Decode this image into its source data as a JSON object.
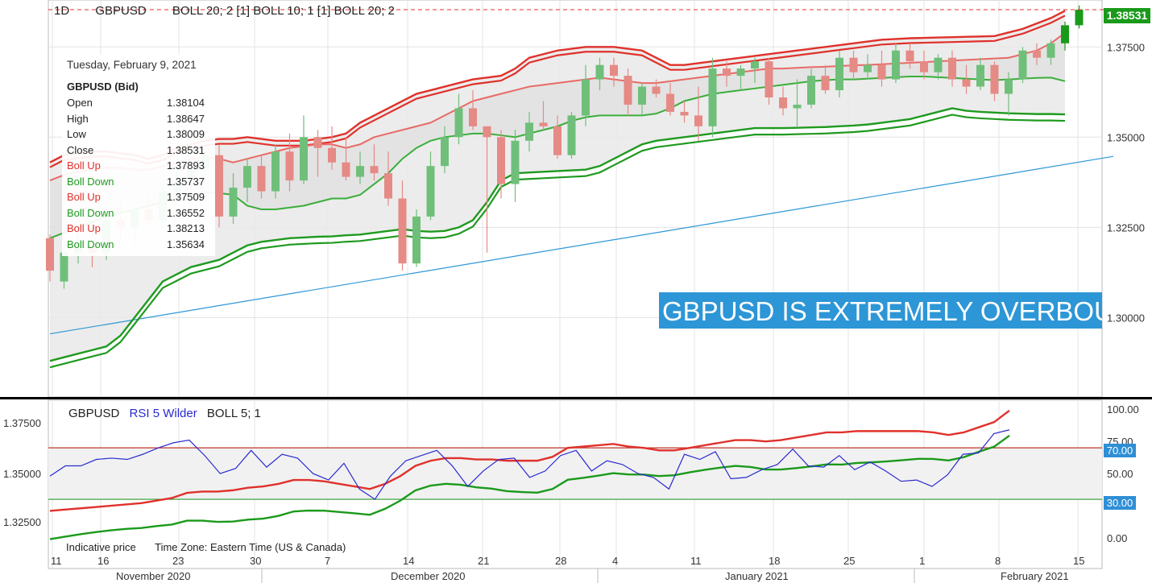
{
  "header": {
    "interval": "1D",
    "symbol": "GBPUSD",
    "indicators": "BOLL 20; 2 [1] BOLL 10; 1 [1] BOLL 20; 2"
  },
  "tooltip": {
    "date": "Tuesday, February 9, 2021",
    "symbol": "GBPUSD (Bid)",
    "rows": [
      {
        "label": "Open",
        "value": "1.38104",
        "color": "#222222"
      },
      {
        "label": "High",
        "value": "1.38647",
        "color": "#222222"
      },
      {
        "label": "Low",
        "value": "1.38009",
        "color": "#222222"
      },
      {
        "label": "Close",
        "value": "1.38531",
        "color": "#222222"
      },
      {
        "label": "Boll Up",
        "value": "1.37893",
        "color": "#e0312b"
      },
      {
        "label": "Boll Down",
        "value": "1.35737",
        "color": "#1f9a1f"
      },
      {
        "label": "Boll Up",
        "value": "1.37509",
        "color": "#e0312b"
      },
      {
        "label": "Boll Down",
        "value": "1.36552",
        "color": "#1f9a1f"
      },
      {
        "label": "Boll Up",
        "value": "1.38213",
        "color": "#e0312b"
      },
      {
        "label": "Boll Down",
        "value": "1.35634",
        "color": "#1f9a1f"
      }
    ]
  },
  "last_price": "1.38531",
  "banner": "GBPUSD IS EXTREMELY OVERBOUGHT",
  "rsi_panel": {
    "symbol": "GBPUSD",
    "indicator": "RSI 5 Wilder",
    "boll": "BOLL 5; 1",
    "badge_upper": "70.00",
    "badge_lower": "30.00"
  },
  "footer": {
    "note": "Indicative price",
    "timezone": "Time Zone: Eastern Time (US & Canada)"
  },
  "colors": {
    "up_candle": "#2e9e3e",
    "down_candle": "#e0312b",
    "boll_up": "#e0312b",
    "boll_down": "#1f9a1f",
    "rsi_line": "#2a2ad0",
    "trendline": "#2d96d6"
  },
  "chart_data": [
    {
      "type": "candlestick",
      "title": "GBPUSD",
      "y_ticks": [
        "1.37500",
        "1.35000",
        "1.32500",
        "1.30000"
      ],
      "ylim": [
        1.278,
        1.388
      ],
      "x_ticks": [
        "11",
        "16",
        "23",
        "30",
        "7",
        "14",
        "21",
        "28",
        "4",
        "11",
        "18",
        "25",
        "1",
        "8",
        "15"
      ],
      "month_labels": [
        "November 2020",
        "December 2020",
        "January 2021",
        "February 2021"
      ],
      "candles": [
        {
          "o": 1.322,
          "h": 1.323,
          "l": 1.31,
          "c": 1.313
        },
        {
          "o": 1.31,
          "h": 1.321,
          "l": 1.308,
          "c": 1.318
        },
        {
          "o": 1.318,
          "h": 1.326,
          "l": 1.315,
          "c": 1.32
        },
        {
          "o": 1.32,
          "h": 1.326,
          "l": 1.314,
          "c": 1.318
        },
        {
          "o": 1.318,
          "h": 1.33,
          "l": 1.316,
          "c": 1.327
        },
        {
          "o": 1.327,
          "h": 1.332,
          "l": 1.322,
          "c": 1.325
        },
        {
          "o": 1.325,
          "h": 1.331,
          "l": 1.32,
          "c": 1.33
        },
        {
          "o": 1.33,
          "h": 1.334,
          "l": 1.325,
          "c": 1.327
        },
        {
          "o": 1.327,
          "h": 1.337,
          "l": 1.325,
          "c": 1.335
        },
        {
          "o": 1.335,
          "h": 1.341,
          "l": 1.333,
          "c": 1.338
        },
        {
          "o": 1.338,
          "h": 1.344,
          "l": 1.335,
          "c": 1.341
        },
        {
          "o": 1.341,
          "h": 1.347,
          "l": 1.338,
          "c": 1.345
        },
        {
          "o": 1.345,
          "h": 1.348,
          "l": 1.325,
          "c": 1.328
        },
        {
          "o": 1.328,
          "h": 1.34,
          "l": 1.326,
          "c": 1.336
        },
        {
          "o": 1.336,
          "h": 1.344,
          "l": 1.332,
          "c": 1.342
        },
        {
          "o": 1.342,
          "h": 1.345,
          "l": 1.333,
          "c": 1.335
        },
        {
          "o": 1.335,
          "h": 1.348,
          "l": 1.333,
          "c": 1.346
        },
        {
          "o": 1.346,
          "h": 1.351,
          "l": 1.335,
          "c": 1.338
        },
        {
          "o": 1.338,
          "h": 1.356,
          "l": 1.337,
          "c": 1.35
        },
        {
          "o": 1.35,
          "h": 1.352,
          "l": 1.339,
          "c": 1.347
        },
        {
          "o": 1.347,
          "h": 1.353,
          "l": 1.341,
          "c": 1.343
        },
        {
          "o": 1.343,
          "h": 1.35,
          "l": 1.338,
          "c": 1.339
        },
        {
          "o": 1.339,
          "h": 1.346,
          "l": 1.337,
          "c": 1.342
        },
        {
          "o": 1.342,
          "h": 1.348,
          "l": 1.338,
          "c": 1.34
        },
        {
          "o": 1.34,
          "h": 1.346,
          "l": 1.331,
          "c": 1.333
        },
        {
          "o": 1.333,
          "h": 1.338,
          "l": 1.313,
          "c": 1.315
        },
        {
          "o": 1.315,
          "h": 1.33,
          "l": 1.314,
          "c": 1.328
        },
        {
          "o": 1.328,
          "h": 1.346,
          "l": 1.327,
          "c": 1.342
        },
        {
          "o": 1.342,
          "h": 1.353,
          "l": 1.34,
          "c": 1.35
        },
        {
          "o": 1.35,
          "h": 1.362,
          "l": 1.348,
          "c": 1.358
        },
        {
          "o": 1.358,
          "h": 1.363,
          "l": 1.352,
          "c": 1.353
        },
        {
          "o": 1.353,
          "h": 1.353,
          "l": 1.318,
          "c": 1.35
        },
        {
          "o": 1.35,
          "h": 1.352,
          "l": 1.333,
          "c": 1.337
        },
        {
          "o": 1.337,
          "h": 1.352,
          "l": 1.332,
          "c": 1.349
        },
        {
          "o": 1.349,
          "h": 1.357,
          "l": 1.346,
          "c": 1.354
        },
        {
          "o": 1.354,
          "h": 1.36,
          "l": 1.352,
          "c": 1.353
        },
        {
          "o": 1.353,
          "h": 1.356,
          "l": 1.344,
          "c": 1.345
        },
        {
          "o": 1.345,
          "h": 1.357,
          "l": 1.344,
          "c": 1.356
        },
        {
          "o": 1.356,
          "h": 1.37,
          "l": 1.353,
          "c": 1.366
        },
        {
          "o": 1.366,
          "h": 1.372,
          "l": 1.363,
          "c": 1.37
        },
        {
          "o": 1.37,
          "h": 1.372,
          "l": 1.364,
          "c": 1.367
        },
        {
          "o": 1.367,
          "h": 1.369,
          "l": 1.356,
          "c": 1.359
        },
        {
          "o": 1.359,
          "h": 1.365,
          "l": 1.356,
          "c": 1.364
        },
        {
          "o": 1.364,
          "h": 1.366,
          "l": 1.361,
          "c": 1.362
        },
        {
          "o": 1.362,
          "h": 1.365,
          "l": 1.356,
          "c": 1.357
        },
        {
          "o": 1.357,
          "h": 1.36,
          "l": 1.354,
          "c": 1.356
        },
        {
          "o": 1.356,
          "h": 1.364,
          "l": 1.349,
          "c": 1.353
        },
        {
          "o": 1.353,
          "h": 1.372,
          "l": 1.35,
          "c": 1.369
        },
        {
          "o": 1.369,
          "h": 1.371,
          "l": 1.364,
          "c": 1.367
        },
        {
          "o": 1.367,
          "h": 1.37,
          "l": 1.363,
          "c": 1.369
        },
        {
          "o": 1.369,
          "h": 1.372,
          "l": 1.365,
          "c": 1.371
        },
        {
          "o": 1.371,
          "h": 1.372,
          "l": 1.359,
          "c": 1.361
        },
        {
          "o": 1.361,
          "h": 1.364,
          "l": 1.356,
          "c": 1.358
        },
        {
          "o": 1.358,
          "h": 1.366,
          "l": 1.353,
          "c": 1.359
        },
        {
          "o": 1.359,
          "h": 1.369,
          "l": 1.358,
          "c": 1.367
        },
        {
          "o": 1.367,
          "h": 1.37,
          "l": 1.362,
          "c": 1.363
        },
        {
          "o": 1.363,
          "h": 1.374,
          "l": 1.361,
          "c": 1.372
        },
        {
          "o": 1.372,
          "h": 1.374,
          "l": 1.366,
          "c": 1.368
        },
        {
          "o": 1.368,
          "h": 1.373,
          "l": 1.366,
          "c": 1.37
        },
        {
          "o": 1.37,
          "h": 1.374,
          "l": 1.364,
          "c": 1.366
        },
        {
          "o": 1.366,
          "h": 1.376,
          "l": 1.365,
          "c": 1.374
        },
        {
          "o": 1.374,
          "h": 1.376,
          "l": 1.369,
          "c": 1.371
        },
        {
          "o": 1.371,
          "h": 1.374,
          "l": 1.366,
          "c": 1.368
        },
        {
          "o": 1.368,
          "h": 1.373,
          "l": 1.366,
          "c": 1.372
        },
        {
          "o": 1.372,
          "h": 1.374,
          "l": 1.364,
          "c": 1.366
        },
        {
          "o": 1.366,
          "h": 1.37,
          "l": 1.362,
          "c": 1.364
        },
        {
          "o": 1.364,
          "h": 1.372,
          "l": 1.363,
          "c": 1.37
        },
        {
          "o": 1.37,
          "h": 1.371,
          "l": 1.36,
          "c": 1.362
        },
        {
          "o": 1.362,
          "h": 1.368,
          "l": 1.356,
          "c": 1.366
        },
        {
          "o": 1.366,
          "h": 1.375,
          "l": 1.365,
          "c": 1.374
        },
        {
          "o": 1.374,
          "h": 1.376,
          "l": 1.37,
          "c": 1.372
        },
        {
          "o": 1.372,
          "h": 1.377,
          "l": 1.37,
          "c": 1.376
        },
        {
          "o": 1.376,
          "h": 1.382,
          "l": 1.374,
          "c": 1.381
        },
        {
          "o": 1.381,
          "h": 1.3865,
          "l": 1.3801,
          "c": 1.3853
        }
      ],
      "boll_upper_outer": [
        1.343,
        1.345,
        1.3455,
        1.346,
        1.346,
        1.3455,
        1.345,
        1.344,
        1.345,
        1.347,
        1.348,
        1.349,
        1.3495,
        1.3495,
        1.35,
        1.3495,
        1.349,
        1.349,
        1.349,
        1.3495,
        1.35,
        1.351,
        1.354,
        1.356,
        1.358,
        1.36,
        1.362,
        1.363,
        1.364,
        1.365,
        1.366,
        1.3665,
        1.367,
        1.369,
        1.372,
        1.373,
        1.374,
        1.3745,
        1.375,
        1.375,
        1.375,
        1.3745,
        1.374,
        1.372,
        1.37,
        1.37,
        1.3705,
        1.371,
        1.3715,
        1.372,
        1.3725,
        1.373,
        1.3735,
        1.374,
        1.3745,
        1.375,
        1.3755,
        1.376,
        1.3765,
        1.377,
        1.3772,
        1.3774,
        1.3775,
        1.3776,
        1.3777,
        1.3778,
        1.3779,
        1.378,
        1.379,
        1.38,
        1.3815,
        1.383,
        1.385
      ],
      "boll_upper_mid": [
        1.338,
        1.3395,
        1.3405,
        1.341,
        1.3415,
        1.3415,
        1.341,
        1.341,
        1.342,
        1.343,
        1.344,
        1.3445,
        1.344,
        1.343,
        1.344,
        1.345,
        1.346,
        1.347,
        1.3475,
        1.348,
        1.348,
        1.347,
        1.348,
        1.35,
        1.351,
        1.352,
        1.353,
        1.354,
        1.356,
        1.358,
        1.36,
        1.361,
        1.362,
        1.363,
        1.364,
        1.3645,
        1.365,
        1.3655,
        1.366,
        1.3665,
        1.366,
        1.3655,
        1.365,
        1.365,
        1.3655,
        1.366,
        1.3665,
        1.367,
        1.3675,
        1.368,
        1.3685,
        1.369,
        1.369,
        1.3692,
        1.3694,
        1.3695,
        1.3697,
        1.3699,
        1.37,
        1.3702,
        1.3704,
        1.3706,
        1.3708,
        1.371,
        1.3712,
        1.3714,
        1.3716,
        1.3718,
        1.372,
        1.373,
        1.374,
        1.376,
        1.3789
      ],
      "boll_lower_mid": [
        1.322,
        1.3235,
        1.325,
        1.3265,
        1.328,
        1.329,
        1.33,
        1.331,
        1.332,
        1.333,
        1.334,
        1.3345,
        1.3345,
        1.334,
        1.331,
        1.33,
        1.33,
        1.3305,
        1.331,
        1.332,
        1.333,
        1.333,
        1.334,
        1.337,
        1.34,
        1.344,
        1.347,
        1.349,
        1.35,
        1.3505,
        1.351,
        1.351,
        1.3505,
        1.35,
        1.351,
        1.352,
        1.353,
        1.3545,
        1.3555,
        1.356,
        1.356,
        1.356,
        1.356,
        1.3565,
        1.358,
        1.36,
        1.361,
        1.362,
        1.3625,
        1.363,
        1.3635,
        1.364,
        1.3645,
        1.365,
        1.3655,
        1.3658,
        1.366,
        1.366,
        1.3662,
        1.3664,
        1.3666,
        1.3668,
        1.3668,
        1.3666,
        1.3664,
        1.3662,
        1.366,
        1.3658,
        1.366,
        1.3662,
        1.3664,
        1.3665,
        1.3655
      ],
      "boll_lower_outer": [
        1.288,
        1.289,
        1.29,
        1.291,
        1.292,
        1.295,
        1.3,
        1.305,
        1.31,
        1.312,
        1.314,
        1.315,
        1.316,
        1.318,
        1.32,
        1.321,
        1.3215,
        1.322,
        1.3222,
        1.3224,
        1.3225,
        1.3228,
        1.323,
        1.3235,
        1.324,
        1.3245,
        1.324,
        1.3238,
        1.324,
        1.325,
        1.327,
        1.332,
        1.338,
        1.34,
        1.3402,
        1.3404,
        1.3406,
        1.3408,
        1.341,
        1.342,
        1.344,
        1.346,
        1.348,
        1.349,
        1.3495,
        1.35,
        1.3505,
        1.351,
        1.3515,
        1.352,
        1.3525,
        1.3525,
        1.3525,
        1.3526,
        1.3527,
        1.3528,
        1.353,
        1.3532,
        1.3535,
        1.354,
        1.3545,
        1.355,
        1.356,
        1.357,
        1.358,
        1.3573,
        1.357,
        1.3568,
        1.3566,
        1.3565,
        1.3564,
        1.3564,
        1.3563
      ],
      "trendline": [
        [
          0,
          1.2955
        ],
        [
          72,
          1.344
        ]
      ]
    },
    {
      "type": "line",
      "title": "GBPUSD RSI 5 Wilder BOLL 5; 1",
      "y_ticks_right": [
        "100.00",
        "75.00",
        "50.00",
        "25.00",
        "0.00"
      ],
      "y_ticks_left": [
        "1.37500",
        "1.35000",
        "1.32500"
      ],
      "ylim": [
        -5,
        102
      ],
      "levels": [
        70,
        30
      ],
      "rsi": [
        48,
        56,
        56,
        61,
        62,
        61,
        65,
        70,
        74,
        76,
        64,
        50,
        54,
        68,
        55,
        65,
        62,
        50,
        45,
        58,
        38,
        30,
        48,
        60,
        64,
        68,
        56,
        40,
        52,
        61,
        62,
        47,
        52,
        64,
        68,
        52,
        60,
        57,
        50,
        47,
        38,
        65,
        61,
        67,
        46,
        47,
        53,
        57,
        69,
        56,
        55,
        64,
        53,
        59,
        52,
        44,
        45,
        40,
        49,
        65,
        66,
        81,
        84
      ],
      "boll_upper": [
        21,
        22,
        23,
        24,
        25,
        26,
        27,
        29,
        31,
        35,
        36,
        36,
        37,
        39,
        40,
        42,
        45,
        45,
        44,
        42,
        40,
        38,
        42,
        48,
        56,
        60,
        62,
        62,
        61,
        61,
        60,
        60,
        60,
        63,
        70,
        71,
        72,
        73,
        71,
        70,
        68,
        68,
        70,
        72,
        74,
        76,
        76,
        75,
        76,
        78,
        80,
        82,
        82,
        83,
        83,
        83,
        83,
        83,
        82,
        80,
        82,
        86,
        90,
        99
      ]
    }
  ]
}
